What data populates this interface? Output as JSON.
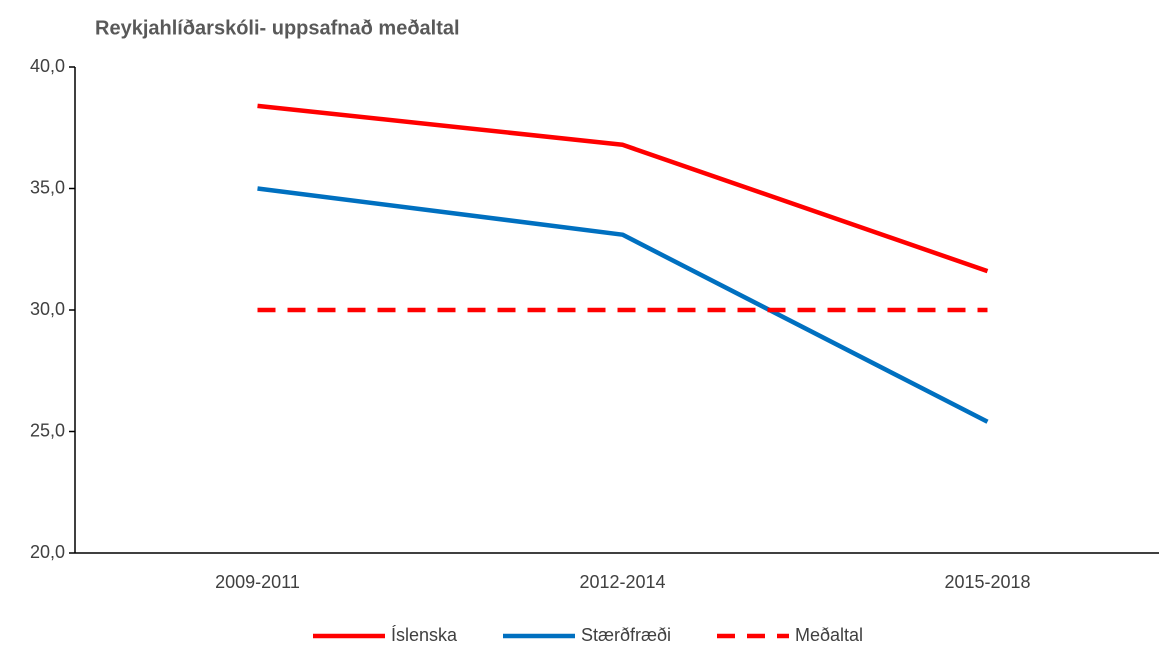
{
  "chart_data": {
    "type": "line",
    "title": "Reykjahlíðarskóli- uppsafnað meðaltal",
    "categories": [
      "2009-2011",
      "2012-2014",
      "2015-2018"
    ],
    "series": [
      {
        "name": "Íslenska",
        "color": "#ff0000",
        "dash": false,
        "values": [
          38.4,
          36.8,
          31.6
        ]
      },
      {
        "name": "Stærðfræði",
        "color": "#0070c0",
        "dash": false,
        "values": [
          35.0,
          33.1,
          25.4
        ]
      },
      {
        "name": "Meðaltal",
        "color": "#ff0000",
        "dash": true,
        "values": [
          30,
          30,
          30
        ]
      }
    ],
    "ylim": [
      20,
      40
    ],
    "yticks": [
      {
        "value": 20,
        "label": "20,0"
      },
      {
        "value": 25,
        "label": "25,0"
      },
      {
        "value": 30,
        "label": "30,0"
      },
      {
        "value": 35,
        "label": "35,0"
      },
      {
        "value": 40,
        "label": "40,0"
      }
    ],
    "grid": false,
    "legend": "bottom"
  }
}
